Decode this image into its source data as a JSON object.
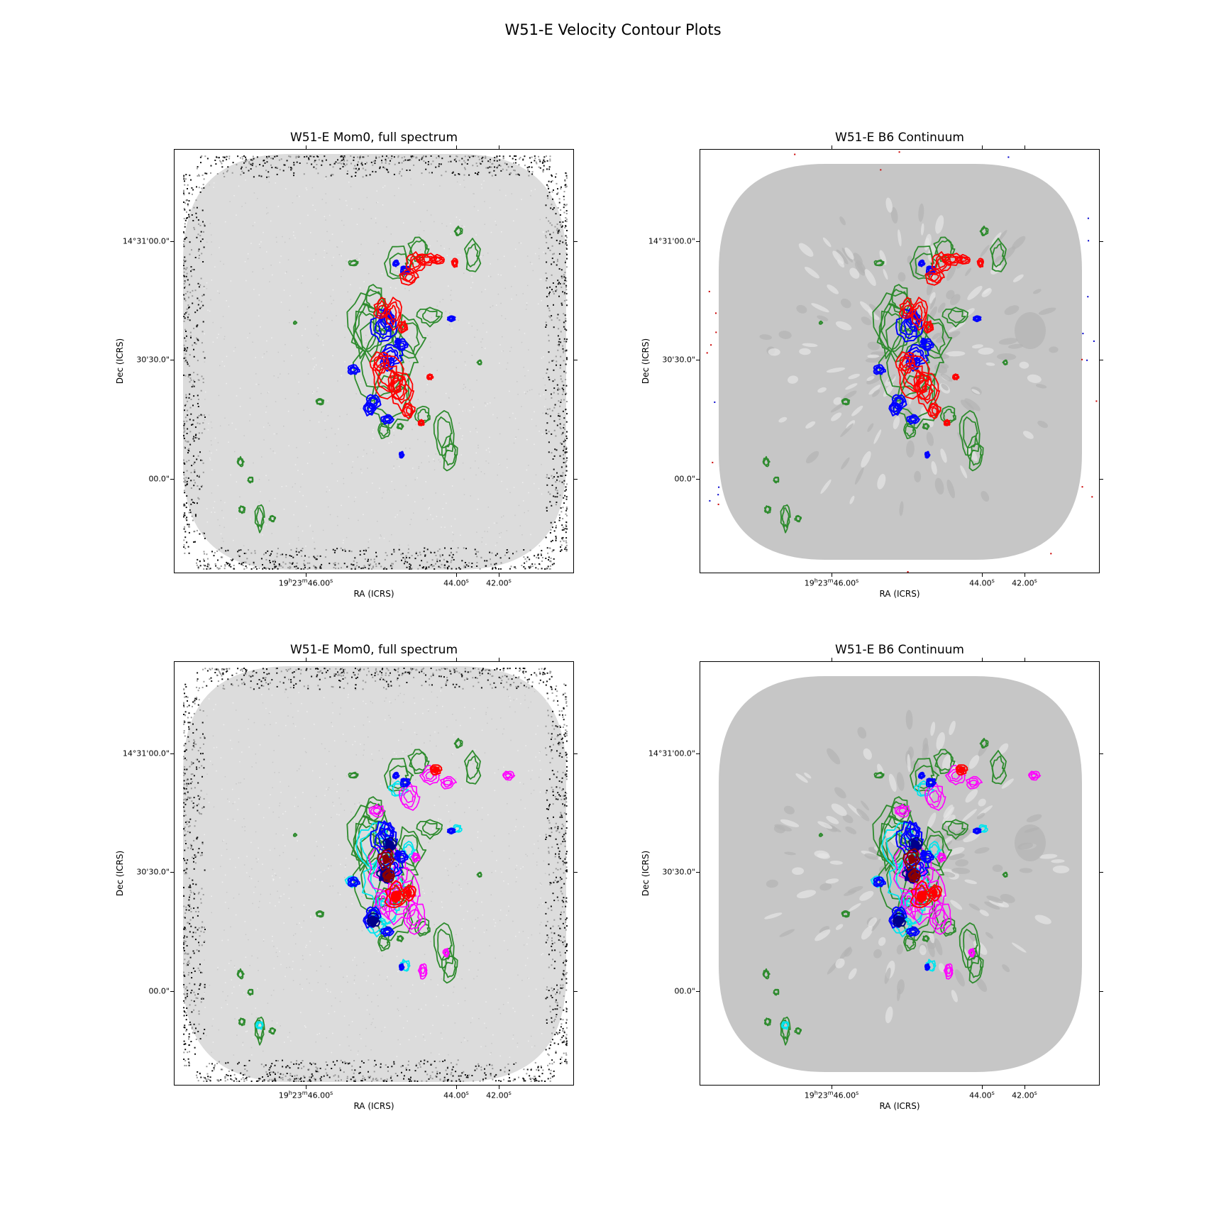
{
  "figure": {
    "suptitle": "W51-E Velocity Contour Plots"
  },
  "axes_common": {
    "xlabel": "RA (ICRS)",
    "ylabel": "Dec (ICRS)",
    "xticks": [
      {
        "label": "19h23m46.00s",
        "sup_h": "h",
        "sup_m": "m",
        "sup_s": "s"
      },
      {
        "label": "44.00s"
      },
      {
        "label": "42.00s"
      }
    ],
    "yticks": [
      "14°31'00.0\"",
      "30'30.0\"",
      "00.0\""
    ]
  },
  "colors": {
    "mom0_contour": "#2e8b2e",
    "blue": "#0000ff",
    "red": "#ff0000",
    "cyan": "#00e5ee",
    "magenta": "#ff00ff",
    "darkred": "#8b0000",
    "navy": "#00008b"
  },
  "chart_data": [
    {
      "type": "heatmap",
      "title": "W51-E Mom0, full spectrum",
      "background": "mom0_noise",
      "contour_sets": [
        "green",
        "blue",
        "red"
      ]
    },
    {
      "type": "heatmap",
      "title": "W51-E B6 Continuum",
      "background": "continuum",
      "contour_sets": [
        "green",
        "blue",
        "red"
      ]
    },
    {
      "type": "heatmap",
      "title": "W51-E Mom0, full spectrum",
      "background": "mom0_noise",
      "contour_sets": [
        "green",
        "cyan",
        "magenta",
        "blue",
        "red",
        "darkred"
      ]
    },
    {
      "type": "heatmap",
      "title": "W51-E B6 Continuum",
      "background": "continuum",
      "contour_sets": [
        "green",
        "cyan",
        "magenta",
        "blue",
        "red",
        "darkred"
      ]
    }
  ]
}
